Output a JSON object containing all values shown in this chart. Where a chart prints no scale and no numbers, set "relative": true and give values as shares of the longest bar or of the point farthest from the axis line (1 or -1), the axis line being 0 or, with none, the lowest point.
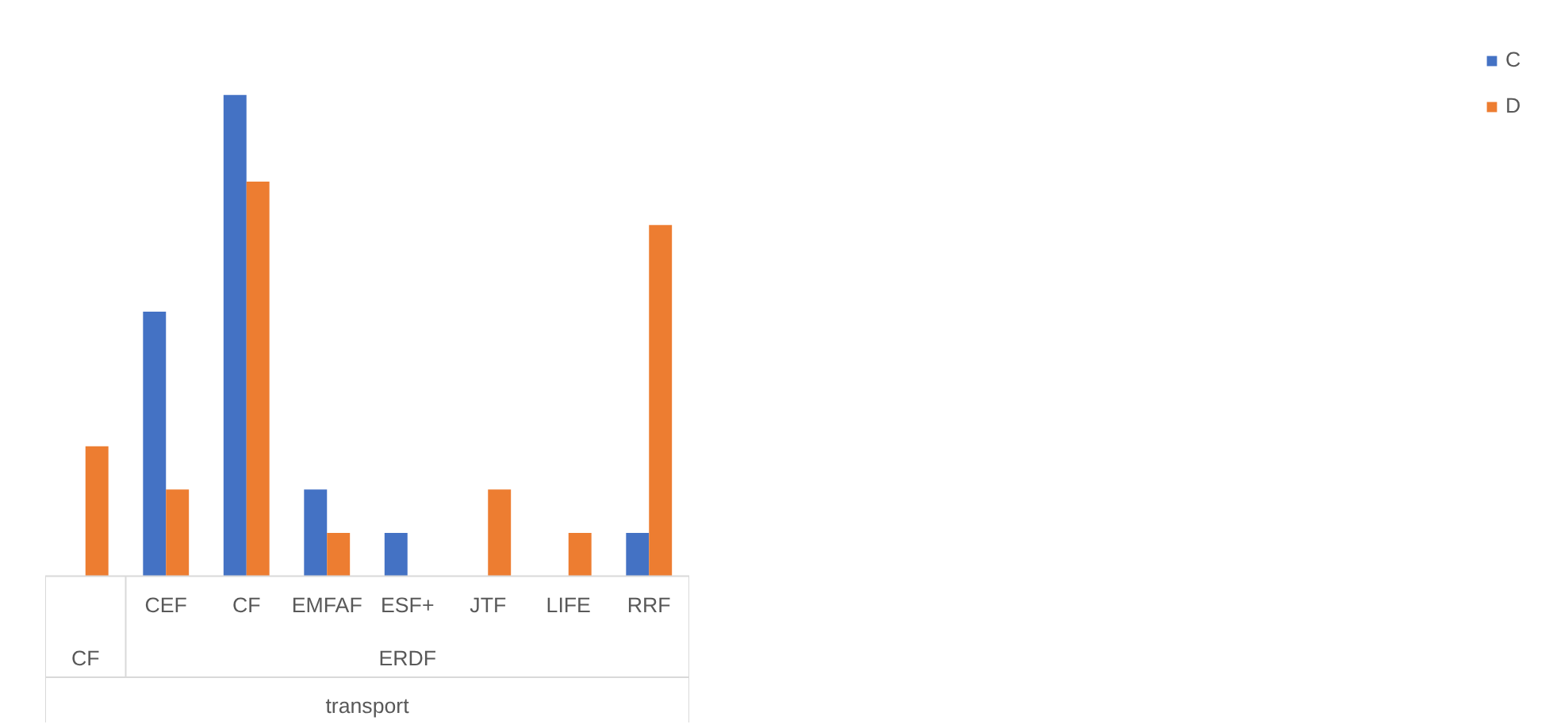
{
  "chart_data": {
    "type": "bar",
    "relative": true,
    "categories": [
      null,
      "CEF",
      "CF",
      "EMFAF",
      "ESF+",
      "JTF",
      "LIFE",
      "RRF"
    ],
    "series": [
      {
        "name": "C",
        "color": "#4472c4",
        "values": [
          0,
          0.55,
          1,
          0.18,
          0.09,
          0,
          0,
          0.09
        ]
      },
      {
        "name": "D",
        "color": "#ed7d31",
        "values": [
          0.27,
          0.18,
          0.82,
          0.09,
          0,
          0.18,
          0.09,
          0.73
        ]
      }
    ],
    "annotations": [
      "CF",
      "ERDF",
      "transport"
    ],
    "legend": "right",
    "grid": false
  }
}
